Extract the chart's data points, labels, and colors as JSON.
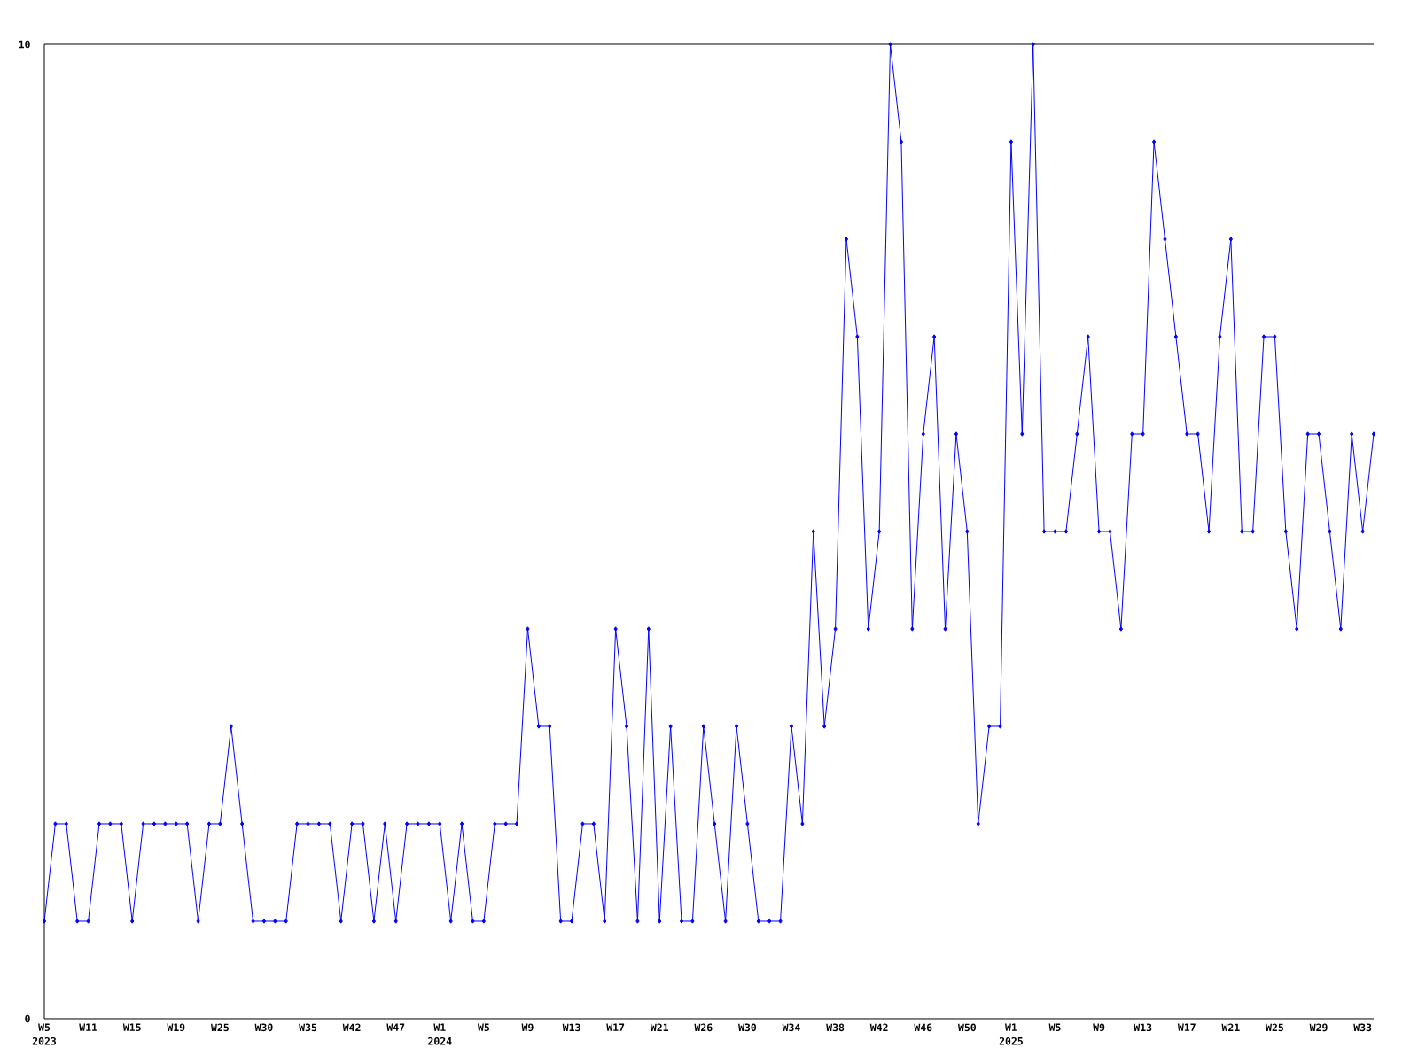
{
  "chart_data": {
    "type": "line",
    "categories": [
      "W5 2023",
      null,
      null,
      null,
      "W11",
      null,
      null,
      null,
      "W15",
      null,
      null,
      null,
      "W19",
      null,
      null,
      null,
      "W25",
      null,
      null,
      null,
      "W30",
      null,
      null,
      null,
      "W35",
      null,
      null,
      null,
      "W42",
      null,
      null,
      null,
      "W47",
      null,
      null,
      null,
      "W1 2024",
      null,
      null,
      null,
      "W5",
      null,
      null,
      null,
      "W9",
      null,
      null,
      null,
      "W13",
      null,
      null,
      null,
      "W17",
      null,
      null,
      null,
      "W21",
      null,
      null,
      null,
      "W26",
      null,
      null,
      null,
      "W30",
      null,
      null,
      null,
      "W34",
      null,
      null,
      null,
      "W38",
      null,
      null,
      null,
      "W42",
      null,
      null,
      null,
      "W46",
      null,
      null,
      null,
      "W50",
      null,
      null,
      null,
      "W1 2025",
      null,
      null,
      null,
      "W5",
      null,
      null,
      null,
      "W9",
      null,
      null,
      null,
      "W13",
      null,
      null,
      null,
      "W17",
      null,
      null,
      null,
      "W21",
      null,
      null,
      null,
      "W25",
      null,
      null,
      null,
      "W29",
      null,
      null,
      null,
      "W33",
      null
    ],
    "values": [
      1,
      2,
      2,
      1,
      1,
      2,
      2,
      2,
      1,
      2,
      2,
      2,
      2,
      2,
      1,
      2,
      2,
      3,
      2,
      1,
      1,
      1,
      1,
      2,
      2,
      2,
      2,
      1,
      2,
      2,
      1,
      2,
      1,
      2,
      2,
      2,
      2,
      1,
      2,
      1,
      1,
      2,
      2,
      2,
      4,
      3,
      3,
      1,
      1,
      2,
      2,
      1,
      4,
      3,
      1,
      4,
      1,
      3,
      1,
      1,
      3,
      2,
      1,
      3,
      2,
      1,
      1,
      1,
      3,
      2,
      5,
      3,
      4,
      8,
      7,
      4,
      5,
      10,
      9,
      4,
      6,
      7,
      4,
      6,
      5,
      2,
      3,
      3,
      9,
      6,
      10,
      5,
      5,
      5,
      6,
      7,
      5,
      5,
      4,
      6,
      6,
      9,
      8,
      7,
      6,
      6,
      5,
      7,
      8,
      5,
      5,
      7,
      7,
      5,
      4,
      6,
      6,
      5,
      4,
      6,
      5,
      6
    ],
    "color": "#0000ff",
    "ylim": [
      0,
      10
    ],
    "yticks": [
      0,
      10
    ],
    "marker": "diamond",
    "line_style": "solid"
  }
}
